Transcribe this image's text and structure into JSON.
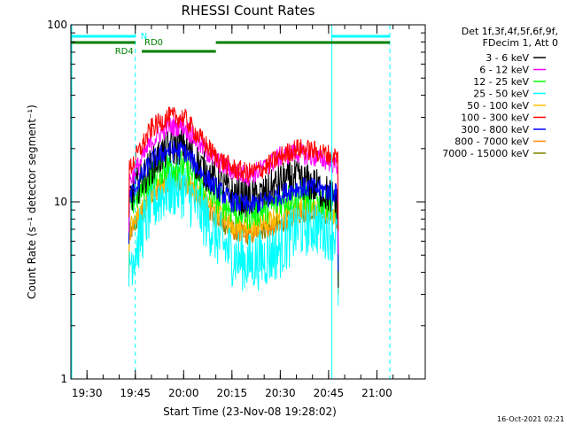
{
  "chart_data": {
    "type": "line",
    "title": "RHESSI Count Rates",
    "xlabel": "Start Time (23-Nov-08 19:28:02)",
    "ylabel": "Count Rate (s⁻¹ detector segment⁻¹)",
    "yscale": "log",
    "ylim": [
      1,
      100
    ],
    "xlim": [
      "19:25",
      "21:15"
    ],
    "x_ticks": [
      "19:30",
      "19:45",
      "20:00",
      "20:15",
      "20:30",
      "20:45",
      "21:00"
    ],
    "y_ticks": [
      "1",
      "10",
      "100"
    ],
    "grid": false,
    "legend_position": "right",
    "legend_header": [
      "Det 1f,3f,4f,5f,6f,9f,",
      "FDecim 1, Att 0"
    ],
    "footer_timestamp": "16-Oct-2021 02:21",
    "attenuator_labels": [
      {
        "label": "N",
        "color": "#00ffff"
      },
      {
        "label": "RD0",
        "color": "#008000"
      },
      {
        "label": "RD4",
        "color": "#008000"
      }
    ],
    "bars": {
      "night": [
        {
          "start": "19:25",
          "end": "19:45"
        },
        {
          "start": "20:46",
          "end": "21:04"
        }
      ],
      "rd0": [
        {
          "start": "19:25",
          "end": "19:45"
        },
        {
          "start": "20:10",
          "end": "21:04"
        }
      ],
      "rd4": [
        {
          "start": "19:47",
          "end": "20:10"
        }
      ]
    },
    "vertical_lines": {
      "solid": [
        "19:25",
        "20:46"
      ],
      "dashed": [
        "19:45",
        "21:04"
      ]
    },
    "series_x": [
      "19:43",
      "19:46",
      "19:50",
      "19:55",
      "20:00",
      "20:05",
      "20:10",
      "20:15",
      "20:20",
      "20:25",
      "20:30",
      "20:35",
      "20:40",
      "20:45",
      "20:48"
    ],
    "series": [
      {
        "name": "3 - 6 keV",
        "color": "#000000",
        "values": [
          10.5,
          12.5,
          16,
          20,
          21,
          16,
          13,
          11,
          10.5,
          11,
          13,
          13.5,
          12.5,
          11,
          10
        ]
      },
      {
        "name": "6 - 12 keV",
        "color": "#ff00ff",
        "values": [
          13,
          16,
          22,
          26.5,
          27,
          21,
          17,
          15,
          14,
          15.5,
          18,
          19,
          18,
          17,
          16
        ]
      },
      {
        "name": "12 - 25 keV",
        "color": "#00ff00",
        "values": [
          9.5,
          11,
          14,
          16,
          16,
          13,
          10.5,
          9,
          8.5,
          9,
          10,
          11,
          10.5,
          10,
          9.5
        ]
      },
      {
        "name": "25 - 50 keV",
        "color": "#00ffff",
        "values": [
          4.5,
          6,
          9.5,
          12,
          12,
          9,
          6.5,
          5,
          4.5,
          4.8,
          5.5,
          7,
          7.5,
          7,
          6.5
        ]
      },
      {
        "name": "50 - 100 keV",
        "color": "#ffbf00",
        "values": [
          7,
          8.5,
          11,
          13,
          13.5,
          11,
          9,
          7.5,
          7,
          7.5,
          8.5,
          9.5,
          9.5,
          9,
          8.5
        ]
      },
      {
        "name": "100 - 300 keV",
        "color": "#ff0000",
        "values": [
          15,
          19,
          26,
          30,
          30,
          23,
          18,
          15.5,
          14.5,
          15.5,
          18,
          20,
          19.5,
          18.5,
          18
        ]
      },
      {
        "name": "300 - 800 keV",
        "color": "#0000ff",
        "values": [
          10.5,
          13,
          17,
          19.5,
          19.5,
          15,
          12,
          10,
          9.5,
          10,
          11,
          12,
          12,
          11.5,
          11
        ]
      },
      {
        "name": "800 - 7000 keV",
        "color": "#ff8c00",
        "values": [
          6.5,
          8,
          11,
          13,
          13,
          10.5,
          8,
          7,
          6.5,
          7,
          7.5,
          8.5,
          9,
          8.5,
          8
        ]
      },
      {
        "name": "7000 - 15000 keV",
        "color": "#808000",
        "values": [
          6.5,
          8,
          11,
          13,
          13,
          10.5,
          8,
          7,
          6.5,
          7,
          7.5,
          8.5,
          9,
          8.5,
          8
        ]
      }
    ]
  }
}
